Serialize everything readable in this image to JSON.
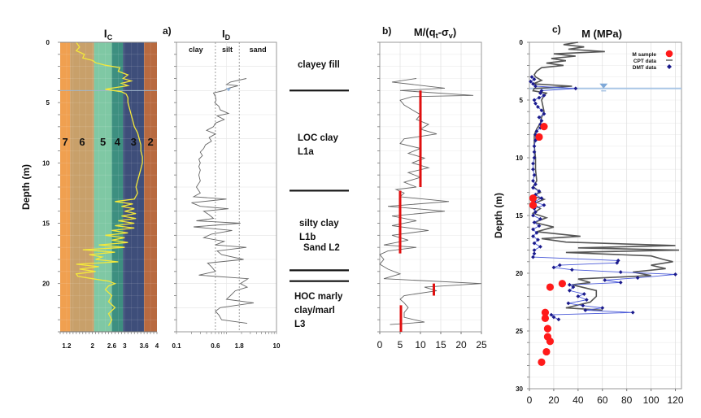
{
  "figure": {
    "y_axis_label": "Depth (m)",
    "panel_labels": [
      "a)",
      "b)",
      "c)"
    ]
  },
  "chart_data": [
    {
      "id": "ic",
      "type": "line",
      "title": "Ic",
      "xlabel": "",
      "ylabel": "Depth (m)",
      "xlim": [
        1,
        4
      ],
      "ylim": [
        0,
        24
      ],
      "x_ticks": [
        "1.2",
        "2",
        "2.6",
        "3",
        "3.6",
        "4"
      ],
      "x_tick_values": [
        1.2,
        2,
        2.6,
        3,
        3.6,
        4
      ],
      "y_ticks": [
        "0",
        "5",
        "10",
        "15",
        "20"
      ],
      "y_tick_values": [
        0,
        5,
        10,
        15,
        20
      ],
      "zones": [
        {
          "label": "7",
          "from": 1.0,
          "to": 1.31,
          "color": "#f0a050"
        },
        {
          "label": "6",
          "from": 1.31,
          "to": 2.05,
          "color": "#c8a06a"
        },
        {
          "label": "5",
          "from": 2.05,
          "to": 2.6,
          "color": "#7fc8a4"
        },
        {
          "label": "4",
          "from": 2.6,
          "to": 2.95,
          "color": "#3d8f80"
        },
        {
          "label": "3",
          "from": 2.95,
          "to": 3.6,
          "color": "#3e4e7a"
        },
        {
          "label": "2",
          "from": 3.6,
          "to": 4.0,
          "color": "#b86a40"
        }
      ],
      "line_color": "#f4e83a",
      "series": [
        {
          "name": "Ic",
          "depth": [
            0,
            0.4,
            0.7,
            1.0,
            1.3,
            1.5,
            1.7,
            1.9,
            2.1,
            2.4,
            2.7,
            3.0,
            3.2,
            3.4,
            3.6,
            3.8,
            3.9,
            4.1,
            4.3,
            4.6,
            5.0,
            5.5,
            6.0,
            6.5,
            7.0,
            7.5,
            8.0,
            8.5,
            9.0,
            9.5,
            10.0,
            10.5,
            11.0,
            11.5,
            12.0,
            12.5,
            13.0,
            13.2,
            13.4,
            13.6,
            13.8,
            14.0,
            14.2,
            14.4,
            14.6,
            14.8,
            15.0,
            15.2,
            15.4,
            15.6,
            15.8,
            16.0,
            16.2,
            16.4,
            16.6,
            16.8,
            17.0,
            17.2,
            17.4,
            17.6,
            17.8,
            18.0,
            18.2,
            18.4,
            18.6,
            18.8,
            19.0,
            19.2,
            19.4,
            19.6,
            19.8,
            20.0,
            20.2,
            20.5,
            21.0,
            21.5,
            22.0,
            22.5,
            23.0,
            23.5
          ],
          "values": [
            1.5,
            1.6,
            1.5,
            1.75,
            1.7,
            2.0,
            2.1,
            2.4,
            2.85,
            2.8,
            3.1,
            2.95,
            3.2,
            2.9,
            3.1,
            2.6,
            2.4,
            2.9,
            3.05,
            3.1,
            3.1,
            3.15,
            3.2,
            3.25,
            3.3,
            3.4,
            3.45,
            3.5,
            3.5,
            3.55,
            3.55,
            3.5,
            3.45,
            3.4,
            3.35,
            3.4,
            3.3,
            2.7,
            3.25,
            2.9,
            3.3,
            3.0,
            3.35,
            2.9,
            3.35,
            2.8,
            3.3,
            2.7,
            3.3,
            2.6,
            3.1,
            2.4,
            3.0,
            2.6,
            3.1,
            2.2,
            3.0,
            1.7,
            2.7,
            1.9,
            2.3,
            2.1,
            2.8,
            1.5,
            2.2,
            1.6,
            2.1,
            1.5,
            1.55,
            2.0,
            2.5,
            2.7,
            2.5,
            2.4,
            2.6,
            2.5,
            2.7,
            2.5,
            2.6,
            2.5
          ]
        }
      ]
    },
    {
      "id": "id",
      "type": "line",
      "title": "ID",
      "xlabel": "",
      "ylabel": "",
      "xscale": "log",
      "xlim": [
        0.1,
        10
      ],
      "ylim": [
        0,
        24
      ],
      "x_ticks": [
        "0.1",
        "0.6",
        "1.8",
        "10"
      ],
      "x_tick_values": [
        0.1,
        0.6,
        1.8,
        10
      ],
      "zone_labels": [
        {
          "label": "clay",
          "color": "#2f7fc1"
        },
        {
          "label": "silt",
          "color": "#2fa86a"
        },
        {
          "label": "sand",
          "color": "#c9a227"
        }
      ],
      "boundaries": [
        0.6,
        1.8
      ],
      "water_table_depth": 4.0,
      "series": [
        {
          "name": "ID",
          "depth": [
            3.0,
            3.3,
            3.5,
            3.6,
            3.8,
            4.0,
            4.2,
            4.5,
            4.8,
            5.0,
            5.3,
            5.6,
            5.9,
            6.1,
            6.4,
            6.7,
            7.0,
            7.3,
            7.6,
            7.9,
            8.2,
            8.5,
            8.8,
            9.1,
            9.4,
            9.7,
            10.0,
            10.3,
            10.6,
            11.0,
            11.5,
            12.0,
            12.5,
            12.8,
            13.0,
            13.3,
            13.6,
            13.8,
            14.0,
            14.3,
            14.6,
            14.8,
            15.0,
            15.3,
            15.6,
            15.9,
            16.2,
            16.5,
            16.8,
            17.0,
            17.3,
            17.6,
            18.0,
            18.3,
            18.6,
            19.0,
            19.3,
            19.6,
            20.0,
            20.3,
            20.6,
            21.0,
            21.3,
            21.6,
            22.0,
            22.3,
            22.6,
            23.0,
            23.3
          ],
          "values": [
            2.5,
            1.2,
            1.0,
            1.7,
            1.1,
            0.9,
            0.55,
            0.6,
            0.62,
            0.58,
            0.7,
            0.75,
            1.1,
            0.65,
            0.9,
            0.6,
            0.55,
            0.4,
            0.6,
            0.45,
            0.5,
            0.38,
            0.35,
            0.3,
            0.33,
            0.28,
            0.3,
            0.28,
            0.3,
            0.28,
            0.3,
            0.25,
            0.3,
            0.22,
            1.0,
            0.2,
            0.3,
            1.1,
            0.35,
            0.45,
            0.55,
            0.25,
            1.9,
            0.22,
            1.3,
            0.5,
            0.35,
            0.9,
            0.6,
            2.5,
            0.65,
            0.8,
            2.2,
            0.42,
            0.5,
            0.6,
            0.28,
            2.7,
            1.9,
            2.6,
            1.5,
            1.2,
            1.0,
            3.5,
            0.75,
            0.6,
            0.7,
            0.8,
            2.6
          ]
        }
      ]
    },
    {
      "id": "ratio",
      "type": "line",
      "title": "M/(qt-σv)",
      "xlabel": "",
      "ylabel": "",
      "xlim": [
        0,
        25
      ],
      "ylim": [
        0,
        24
      ],
      "x_ticks": [
        "0",
        "5",
        "10",
        "15",
        "20",
        "25"
      ],
      "x_tick_values": [
        0,
        5,
        10,
        15,
        20,
        25
      ],
      "series": [
        {
          "name": "M/(qt-σv) profile",
          "color": "#666666",
          "depth": [
            3.0,
            3.3,
            3.8,
            4.0,
            4.4,
            4.5,
            4.8,
            5.2,
            5.6,
            6.0,
            6.4,
            6.8,
            7.2,
            7.6,
            8.0,
            8.4,
            8.8,
            9.2,
            9.6,
            10.0,
            10.4,
            10.8,
            11.2,
            11.6,
            12.0,
            12.2,
            12.5,
            12.8,
            13.2,
            13.6,
            14.0,
            14.4,
            14.8,
            15.2,
            15.6,
            16.0,
            16.4,
            16.8,
            17.0,
            17.3,
            17.6,
            18.0,
            18.4,
            18.8,
            19.2,
            19.6,
            20.0,
            20.3,
            20.6,
            21.0,
            21.3,
            21.6,
            22.0,
            22.4,
            22.8,
            23.2,
            23.4
          ],
          "values": [
            9,
            3,
            16,
            5,
            23,
            8,
            5,
            6,
            8,
            10,
            9,
            12,
            10,
            14,
            6,
            5,
            10,
            7,
            11,
            8,
            12,
            7,
            10,
            6,
            9,
            4,
            6,
            5,
            17,
            2,
            16,
            3,
            9,
            3,
            12,
            3,
            7,
            1,
            9,
            2,
            0,
            1,
            0,
            2,
            5,
            1,
            25,
            11,
            14,
            6,
            5,
            6,
            7,
            6,
            6,
            11,
            2.5
          ]
        },
        {
          "name": "layer averages",
          "color": "#e01010",
          "type": "segments",
          "segments": [
            {
              "value": 10,
              "from": 4.0,
              "to": 12.0
            },
            {
              "value": 5,
              "from": 12.3,
              "to": 17.5
            },
            {
              "value": 13.3,
              "from": 20.0,
              "to": 21.0
            },
            {
              "value": 5.2,
              "from": 21.8,
              "to": 24.0
            }
          ]
        }
      ]
    },
    {
      "id": "m",
      "type": "scatter",
      "title": "M (MPa)",
      "xlabel": "",
      "ylabel": "Depth (m)",
      "xlim": [
        0,
        125
      ],
      "ylim": [
        0,
        30
      ],
      "x_ticks": [
        "0",
        "20",
        "40",
        "60",
        "80",
        "100",
        "120"
      ],
      "x_tick_values": [
        0,
        20,
        40,
        60,
        80,
        100,
        120
      ],
      "y_ticks": [
        "0",
        "5",
        "10",
        "15",
        "20",
        "25",
        "30"
      ],
      "y_tick_values": [
        0,
        5,
        10,
        15,
        20,
        25,
        30
      ],
      "legend": {
        "position": "top-right",
        "entries": [
          "M sample",
          "CPT data",
          "DMT data"
        ]
      },
      "water_table_depth": 4.0,
      "water_table_marker_x": 61,
      "series": [
        {
          "name": "CPT data",
          "color": "#555555",
          "depth": [
            0,
            0.2,
            0.4,
            0.6,
            0.8,
            1.0,
            1.2,
            1.4,
            1.6,
            1.8,
            2.0,
            2.2,
            2.5,
            2.8,
            3.0,
            3.3,
            3.6,
            3.8,
            4.0,
            4.2,
            4.4,
            4.6,
            5.0,
            5.5,
            6.0,
            6.5,
            7.0,
            7.5,
            8.0,
            9.0,
            10.0,
            11.0,
            12.0,
            12.5,
            13.0,
            13.3,
            13.6,
            14.0,
            14.4,
            14.8,
            15.2,
            15.6,
            16.0,
            16.4,
            16.8,
            17.0,
            17.3,
            17.6,
            17.8,
            18.0,
            18.2,
            18.5,
            18.8,
            19.0,
            19.3,
            19.6,
            19.9,
            20.2,
            20.5,
            20.8,
            21.0,
            21.5,
            22.0,
            22.5,
            23.0,
            23.2
          ],
          "values": [
            40,
            28,
            45,
            32,
            62,
            20,
            38,
            18,
            30,
            14,
            28,
            10,
            6,
            4,
            5,
            10,
            3,
            35,
            4,
            3,
            14,
            12,
            10,
            11,
            12,
            10,
            9,
            6,
            4,
            4,
            5,
            5,
            6,
            3,
            9,
            2,
            12,
            3,
            9,
            3,
            14,
            4,
            20,
            6,
            42,
            10,
            30,
            120,
            40,
            123,
            30,
            100,
            110,
            118,
            100,
            112,
            85,
            100,
            40,
            50,
            35,
            55,
            55,
            50,
            30,
            60
          ]
        },
        {
          "name": "DMT data",
          "color": "#1a1a8c",
          "depth": [
            3.0,
            3.2,
            3.4,
            3.6,
            3.8,
            4.0,
            4.2,
            4.4,
            4.6,
            4.8,
            5.0,
            5.3,
            5.6,
            5.9,
            6.2,
            6.5,
            6.8,
            7.1,
            7.4,
            7.7,
            8.0,
            8.5,
            9.0,
            9.5,
            10.0,
            10.5,
            11.0,
            11.5,
            12.0,
            12.3,
            12.6,
            12.9,
            13.2,
            13.5,
            13.8,
            14.1,
            14.4,
            14.7,
            15.0,
            15.3,
            15.6,
            15.9,
            16.2,
            16.5,
            16.8,
            17.1,
            17.4,
            17.7,
            18.0,
            18.3,
            18.6,
            18.9,
            19.1,
            19.3,
            19.5,
            19.7,
            19.9,
            20.1,
            20.4,
            20.6,
            20.8,
            21.0,
            21.2,
            21.5,
            21.8,
            22.0,
            22.3,
            22.6,
            22.8,
            23.0,
            23.2,
            23.4,
            23.6,
            23.8,
            24.0
          ],
          "values": [
            2,
            4,
            1,
            3,
            5,
            38,
            10,
            9,
            12,
            8,
            4,
            5,
            7,
            10,
            12,
            8,
            10,
            9,
            9,
            6,
            5,
            5,
            4,
            4,
            4,
            3,
            3,
            4,
            3,
            5,
            3,
            8,
            5,
            10,
            4,
            12,
            4,
            5,
            3,
            9,
            4,
            8,
            3,
            6,
            3,
            7,
            4,
            9,
            4,
            4,
            3,
            73,
            72,
            25,
            20,
            35,
            75,
            120,
            89,
            62,
            75,
            33,
            36,
            33,
            45,
            40,
            47,
            32,
            44,
            60,
            46,
            85,
            18,
            20,
            24
          ]
        },
        {
          "name": "M sample",
          "color": "#ff1a1a",
          "points": [
            [
              7.3,
              12
            ],
            [
              8.2,
              8
            ],
            [
              13.5,
              3
            ],
            [
              14.1,
              3
            ],
            [
              20.9,
              27
            ],
            [
              21.2,
              17
            ],
            [
              23.4,
              13
            ],
            [
              23.9,
              13
            ],
            [
              24.8,
              15
            ],
            [
              25.5,
              15
            ],
            [
              25.9,
              17
            ],
            [
              26.8,
              14
            ],
            [
              27.7,
              10
            ]
          ]
        }
      ]
    }
  ],
  "layers": [
    {
      "name": "clayey fill",
      "lines": [
        "clayey fill"
      ]
    },
    {
      "name": "LOC clay L1a",
      "lines": [
        "LOC clay",
        "L1a"
      ]
    },
    {
      "name": "silty clay L1b",
      "lines": [
        "silty clay",
        "L1b"
      ]
    },
    {
      "name": "Sand L2",
      "lines": [
        "Sand L2"
      ]
    },
    {
      "name": "HOC marly clay/marl L3",
      "lines": [
        "HOC marly",
        "clay/marl",
        "L3"
      ]
    }
  ],
  "layer_boundaries_depth": [
    4.0,
    12.3,
    18.9,
    19.8
  ]
}
